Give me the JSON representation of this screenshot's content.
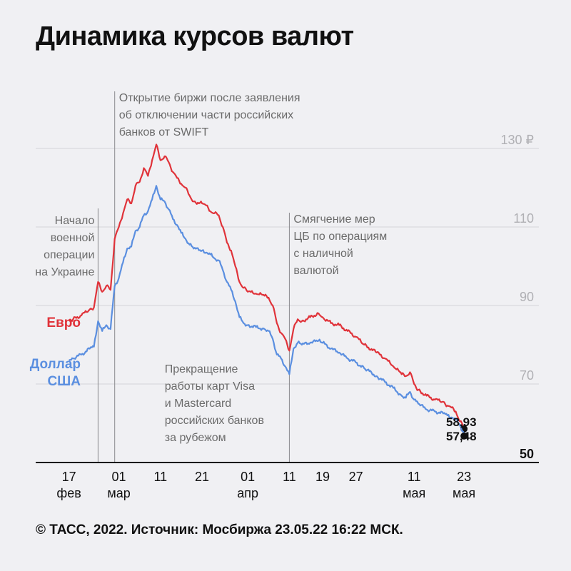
{
  "chart_data": {
    "type": "line",
    "title": "Динамика курсов валют",
    "yticks": [
      {
        "value": 130,
        "label": "130 ₽"
      },
      {
        "value": 110,
        "label": "110"
      },
      {
        "value": 90,
        "label": "90"
      },
      {
        "value": 70,
        "label": "70"
      },
      {
        "value": 50,
        "label": "50"
      }
    ],
    "ylim": [
      50,
      130
    ],
    "xlim": [
      "2022-02-09",
      "2022-06-10"
    ],
    "xticks": [
      {
        "date": "2022-02-17",
        "lines": [
          "17",
          "фев"
        ]
      },
      {
        "date": "2022-03-01",
        "lines": [
          "01",
          "мар"
        ]
      },
      {
        "date": "2022-03-11",
        "lines": [
          "11",
          ""
        ]
      },
      {
        "date": "2022-03-21",
        "lines": [
          "21",
          ""
        ]
      },
      {
        "date": "2022-04-01",
        "lines": [
          "01",
          "апр"
        ]
      },
      {
        "date": "2022-04-11",
        "lines": [
          "11",
          ""
        ]
      },
      {
        "date": "2022-04-19",
        "lines": [
          "19",
          ""
        ]
      },
      {
        "date": "2022-04-27",
        "lines": [
          "27",
          ""
        ]
      },
      {
        "date": "2022-05-11",
        "lines": [
          "11",
          "мая"
        ]
      },
      {
        "date": "2022-05-23",
        "lines": [
          "23",
          "мая"
        ]
      }
    ],
    "grid": true,
    "series": [
      {
        "name": "Евро",
        "color": "#e0333a",
        "end_label": "58,93",
        "points": [
          [
            "2022-02-17",
            86.0
          ],
          [
            "2022-02-18",
            86.5
          ],
          [
            "2022-02-20",
            87.5
          ],
          [
            "2022-02-22",
            89.0
          ],
          [
            "2022-02-23",
            89.5
          ],
          [
            "2022-02-24",
            96.0
          ],
          [
            "2022-02-25",
            93.5
          ],
          [
            "2022-02-26",
            95.0
          ],
          [
            "2022-02-27",
            94.0
          ],
          [
            "2022-02-28",
            107.0
          ],
          [
            "2022-03-01",
            110.0
          ],
          [
            "2022-03-02",
            113.5
          ],
          [
            "2022-03-03",
            117.0
          ],
          [
            "2022-03-04",
            116.0
          ],
          [
            "2022-03-05",
            120.5
          ],
          [
            "2022-03-06",
            121.5
          ],
          [
            "2022-03-07",
            125.0
          ],
          [
            "2022-03-08",
            123.0
          ],
          [
            "2022-03-09",
            127.0
          ],
          [
            "2022-03-10",
            131.0
          ],
          [
            "2022-03-11",
            127.0
          ],
          [
            "2022-03-12",
            128.0
          ],
          [
            "2022-03-13",
            126.5
          ],
          [
            "2022-03-14",
            124.0
          ],
          [
            "2022-03-15",
            122.5
          ],
          [
            "2022-03-16",
            121.0
          ],
          [
            "2022-03-17",
            120.0
          ],
          [
            "2022-03-18",
            118.0
          ],
          [
            "2022-03-19",
            116.5
          ],
          [
            "2022-03-21",
            116.0
          ],
          [
            "2022-03-22",
            115.5
          ],
          [
            "2022-03-23",
            114.0
          ],
          [
            "2022-03-24",
            113.5
          ],
          [
            "2022-03-25",
            113.0
          ],
          [
            "2022-03-26",
            110.0
          ],
          [
            "2022-03-27",
            106.0
          ],
          [
            "2022-03-28",
            104.0
          ],
          [
            "2022-03-29",
            100.0
          ],
          [
            "2022-03-30",
            96.0
          ],
          [
            "2022-03-31",
            94.5
          ],
          [
            "2022-04-01",
            93.5
          ],
          [
            "2022-04-03",
            93.0
          ],
          [
            "2022-04-05",
            92.5
          ],
          [
            "2022-04-06",
            92.0
          ],
          [
            "2022-04-07",
            90.0
          ],
          [
            "2022-04-08",
            85.5
          ],
          [
            "2022-04-09",
            83.0
          ],
          [
            "2022-04-10",
            81.5
          ],
          [
            "2022-04-11",
            78.5
          ],
          [
            "2022-04-12",
            84.0
          ],
          [
            "2022-04-13",
            86.5
          ],
          [
            "2022-04-14",
            86.0
          ],
          [
            "2022-04-16",
            87.0
          ],
          [
            "2022-04-18",
            88.0
          ],
          [
            "2022-04-19",
            87.0
          ],
          [
            "2022-04-21",
            85.5
          ],
          [
            "2022-04-23",
            85.0
          ],
          [
            "2022-04-25",
            83.5
          ],
          [
            "2022-04-27",
            82.0
          ],
          [
            "2022-04-29",
            80.0
          ],
          [
            "2022-05-02",
            78.0
          ],
          [
            "2022-05-04",
            76.5
          ],
          [
            "2022-05-06",
            74.5
          ],
          [
            "2022-05-08",
            72.5
          ],
          [
            "2022-05-09",
            72.0
          ],
          [
            "2022-05-10",
            73.0
          ],
          [
            "2022-05-11",
            70.0
          ],
          [
            "2022-05-12",
            68.5
          ],
          [
            "2022-05-14",
            67.0
          ],
          [
            "2022-05-16",
            66.0
          ],
          [
            "2022-05-18",
            65.5
          ],
          [
            "2022-05-19",
            64.5
          ],
          [
            "2022-05-20",
            64.0
          ],
          [
            "2022-05-21",
            63.0
          ],
          [
            "2022-05-22",
            60.5
          ],
          [
            "2022-05-23",
            58.93
          ]
        ]
      },
      {
        "name": "Доллар США",
        "color": "#5b8fe0",
        "end_label": "57,48",
        "points": [
          [
            "2022-02-17",
            76.0
          ],
          [
            "2022-02-18",
            76.5
          ],
          [
            "2022-02-20",
            77.5
          ],
          [
            "2022-02-22",
            79.0
          ],
          [
            "2022-02-23",
            79.5
          ],
          [
            "2022-02-24",
            86.0
          ],
          [
            "2022-02-25",
            83.5
          ],
          [
            "2022-02-26",
            85.0
          ],
          [
            "2022-02-27",
            84.0
          ],
          [
            "2022-02-28",
            95.0
          ],
          [
            "2022-03-01",
            97.0
          ],
          [
            "2022-03-02",
            101.0
          ],
          [
            "2022-03-03",
            104.5
          ],
          [
            "2022-03-04",
            105.0
          ],
          [
            "2022-03-05",
            109.0
          ],
          [
            "2022-03-06",
            110.0
          ],
          [
            "2022-03-07",
            113.0
          ],
          [
            "2022-03-08",
            114.0
          ],
          [
            "2022-03-09",
            117.0
          ],
          [
            "2022-03-10",
            120.5
          ],
          [
            "2022-03-11",
            117.0
          ],
          [
            "2022-03-12",
            116.5
          ],
          [
            "2022-03-13",
            114.5
          ],
          [
            "2022-03-14",
            112.0
          ],
          [
            "2022-03-15",
            110.5
          ],
          [
            "2022-03-16",
            108.5
          ],
          [
            "2022-03-17",
            107.0
          ],
          [
            "2022-03-18",
            105.5
          ],
          [
            "2022-03-19",
            104.5
          ],
          [
            "2022-03-21",
            104.0
          ],
          [
            "2022-03-22",
            103.5
          ],
          [
            "2022-03-23",
            103.0
          ],
          [
            "2022-03-24",
            102.0
          ],
          [
            "2022-03-25",
            101.5
          ],
          [
            "2022-03-26",
            99.0
          ],
          [
            "2022-03-27",
            96.0
          ],
          [
            "2022-03-28",
            94.0
          ],
          [
            "2022-03-29",
            91.0
          ],
          [
            "2022-03-30",
            87.0
          ],
          [
            "2022-03-31",
            85.5
          ],
          [
            "2022-04-01",
            85.0
          ],
          [
            "2022-04-03",
            84.5
          ],
          [
            "2022-04-05",
            84.0
          ],
          [
            "2022-04-06",
            83.5
          ],
          [
            "2022-04-07",
            81.5
          ],
          [
            "2022-04-08",
            77.5
          ],
          [
            "2022-04-09",
            76.5
          ],
          [
            "2022-04-10",
            74.5
          ],
          [
            "2022-04-11",
            72.5
          ],
          [
            "2022-04-12",
            79.0
          ],
          [
            "2022-04-13",
            80.5
          ],
          [
            "2022-04-14",
            80.0
          ],
          [
            "2022-04-16",
            80.5
          ],
          [
            "2022-04-18",
            81.0
          ],
          [
            "2022-04-19",
            80.5
          ],
          [
            "2022-04-21",
            79.0
          ],
          [
            "2022-04-23",
            78.0
          ],
          [
            "2022-04-25",
            76.5
          ],
          [
            "2022-04-27",
            75.5
          ],
          [
            "2022-04-29",
            74.0
          ],
          [
            "2022-05-02",
            72.0
          ],
          [
            "2022-05-04",
            70.5
          ],
          [
            "2022-05-06",
            69.0
          ],
          [
            "2022-05-08",
            67.0
          ],
          [
            "2022-05-09",
            66.5
          ],
          [
            "2022-05-10",
            68.0
          ],
          [
            "2022-05-11",
            66.0
          ],
          [
            "2022-05-12",
            65.0
          ],
          [
            "2022-05-14",
            63.5
          ],
          [
            "2022-05-16",
            63.0
          ],
          [
            "2022-05-18",
            62.5
          ],
          [
            "2022-05-19",
            62.0
          ],
          [
            "2022-05-20",
            61.5
          ],
          [
            "2022-05-21",
            61.0
          ],
          [
            "2022-05-22",
            59.5
          ],
          [
            "2022-05-23",
            57.48
          ]
        ]
      }
    ],
    "annotations": [
      {
        "id": "war",
        "date": "2022-02-24",
        "lines": [
          "Начало",
          "военной",
          "операции",
          "на Украине"
        ]
      },
      {
        "id": "swift",
        "date": "2022-02-28",
        "lines": [
          "Открытие биржи после заявления",
          "об отключении части российских",
          "банков от SWIFT"
        ]
      },
      {
        "id": "visa",
        "date": "2022-03-11",
        "lines": [
          "Прекращение",
          "работы карт Visa",
          "и Mastercard",
          "российских банков",
          "за рубежом"
        ]
      },
      {
        "id": "cash",
        "date": "2022-04-11",
        "lines": [
          "Смягчение мер",
          "ЦБ по операциям",
          "с наличной",
          "валютой"
        ]
      }
    ]
  },
  "footer": "© ТАСС, 2022. Источник: Мосбиржа 23.05.22 16:22 МСК."
}
